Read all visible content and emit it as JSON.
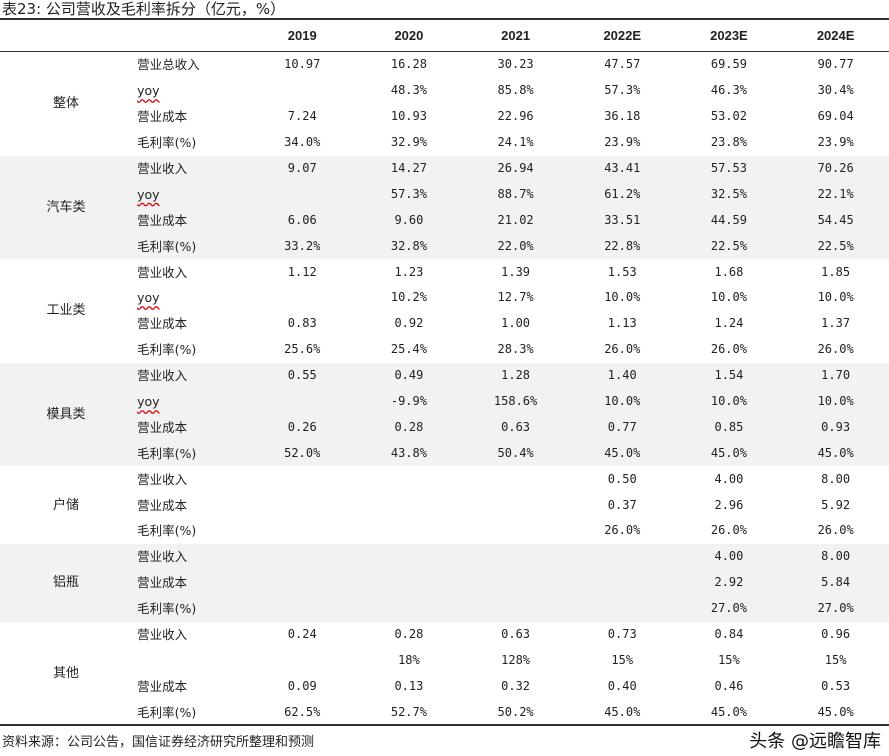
{
  "title": "表23: 公司营收及毛利率拆分（亿元，%）",
  "columns": [
    "2019",
    "2020",
    "2021",
    "2022E",
    "2023E",
    "2024E"
  ],
  "groups": [
    {
      "name": "整体",
      "shaded": false,
      "rows": [
        {
          "label": "营业总收入",
          "values": [
            "10.97",
            "16.28",
            "30.23",
            "47.57",
            "69.59",
            "90.77"
          ]
        },
        {
          "label": "yoy",
          "values": [
            "",
            "48.3%",
            "85.8%",
            "57.3%",
            "46.3%",
            "30.4%"
          ]
        },
        {
          "label": "营业成本",
          "values": [
            "7.24",
            "10.93",
            "22.96",
            "36.18",
            "53.02",
            "69.04"
          ]
        },
        {
          "label": "毛利率(%)",
          "values": [
            "34.0%",
            "32.9%",
            "24.1%",
            "23.9%",
            "23.8%",
            "23.9%"
          ]
        }
      ]
    },
    {
      "name": "汽车类",
      "shaded": true,
      "rows": [
        {
          "label": "营业收入",
          "values": [
            "9.07",
            "14.27",
            "26.94",
            "43.41",
            "57.53",
            "70.26"
          ]
        },
        {
          "label": "yoy",
          "values": [
            "",
            "57.3%",
            "88.7%",
            "61.2%",
            "32.5%",
            "22.1%"
          ]
        },
        {
          "label": "营业成本",
          "values": [
            "6.06",
            "9.60",
            "21.02",
            "33.51",
            "44.59",
            "54.45"
          ]
        },
        {
          "label": "毛利率(%)",
          "values": [
            "33.2%",
            "32.8%",
            "22.0%",
            "22.8%",
            "22.5%",
            "22.5%"
          ]
        }
      ]
    },
    {
      "name": "工业类",
      "shaded": false,
      "rows": [
        {
          "label": "营业收入",
          "values": [
            "1.12",
            "1.23",
            "1.39",
            "1.53",
            "1.68",
            "1.85"
          ]
        },
        {
          "label": "yoy",
          "values": [
            "",
            "10.2%",
            "12.7%",
            "10.0%",
            "10.0%",
            "10.0%"
          ]
        },
        {
          "label": "营业成本",
          "values": [
            "0.83",
            "0.92",
            "1.00",
            "1.13",
            "1.24",
            "1.37"
          ]
        },
        {
          "label": "毛利率(%)",
          "values": [
            "25.6%",
            "25.4%",
            "28.3%",
            "26.0%",
            "26.0%",
            "26.0%"
          ]
        }
      ]
    },
    {
      "name": "模具类",
      "shaded": true,
      "rows": [
        {
          "label": "营业收入",
          "values": [
            "0.55",
            "0.49",
            "1.28",
            "1.40",
            "1.54",
            "1.70"
          ]
        },
        {
          "label": "yoy",
          "values": [
            "",
            "-9.9%",
            "158.6%",
            "10.0%",
            "10.0%",
            "10.0%"
          ]
        },
        {
          "label": "营业成本",
          "values": [
            "0.26",
            "0.28",
            "0.63",
            "0.77",
            "0.85",
            "0.93"
          ]
        },
        {
          "label": "毛利率(%)",
          "values": [
            "52.0%",
            "43.8%",
            "50.4%",
            "45.0%",
            "45.0%",
            "45.0%"
          ]
        }
      ]
    },
    {
      "name": "户储",
      "shaded": false,
      "rows": [
        {
          "label": "营业收入",
          "values": [
            "",
            "",
            "",
            "0.50",
            "4.00",
            "8.00"
          ]
        },
        {
          "label": "营业成本",
          "values": [
            "",
            "",
            "",
            "0.37",
            "2.96",
            "5.92"
          ]
        },
        {
          "label": "毛利率(%)",
          "values": [
            "",
            "",
            "",
            "26.0%",
            "26.0%",
            "26.0%"
          ]
        }
      ]
    },
    {
      "name": "铝瓶",
      "shaded": true,
      "rows": [
        {
          "label": "营业收入",
          "values": [
            "",
            "",
            "",
            "",
            "4.00",
            "8.00"
          ]
        },
        {
          "label": "营业成本",
          "values": [
            "",
            "",
            "",
            "",
            "2.92",
            "5.84"
          ]
        },
        {
          "label": "毛利率(%)",
          "values": [
            "",
            "",
            "",
            "",
            "27.0%",
            "27.0%"
          ]
        }
      ]
    },
    {
      "name": "其他",
      "shaded": false,
      "rows": [
        {
          "label": "营业收入",
          "values": [
            "0.24",
            "0.28",
            "0.63",
            "0.73",
            "0.84",
            "0.96"
          ]
        },
        {
          "label": "",
          "values": [
            "",
            "18%",
            "128%",
            "15%",
            "15%",
            "15%"
          ]
        },
        {
          "label": "营业成本",
          "values": [
            "0.09",
            "0.13",
            "0.32",
            "0.40",
            "0.46",
            "0.53"
          ]
        },
        {
          "label": "毛利率(%)",
          "values": [
            "62.5%",
            "52.7%",
            "50.2%",
            "45.0%",
            "45.0%",
            "45.0%"
          ]
        }
      ]
    }
  ],
  "footer": "资料来源：公司公告，国信证券经济研究所整理和预测",
  "watermark": "头条 @远瞻智库",
  "colors": {
    "shaded_row": "#f2f2f2",
    "rule": "#333333"
  }
}
